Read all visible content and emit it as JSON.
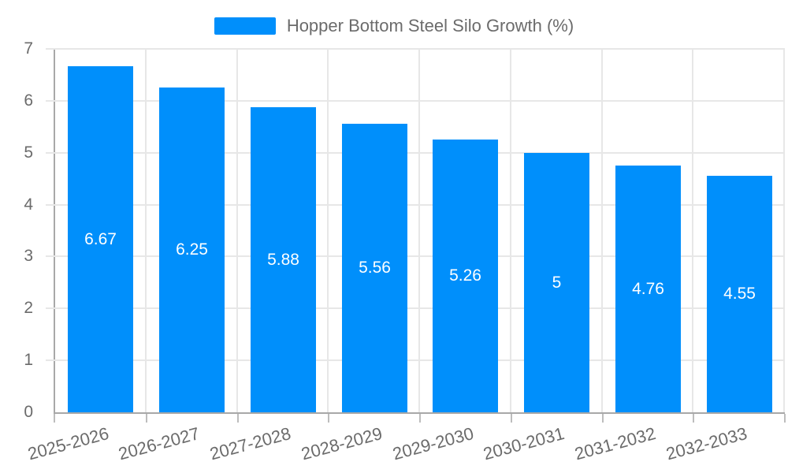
{
  "legend": {
    "label": "Hopper Bottom Steel Silo Growth (%)"
  },
  "chart_data": {
    "type": "bar",
    "title": "Hopper Bottom Steel Silo Growth (%)",
    "categories": [
      "2025-2026",
      "2026-2027",
      "2027-2028",
      "2028-2029",
      "2029-2030",
      "2030-2031",
      "2031-2032",
      "2032-2033"
    ],
    "values": [
      6.67,
      6.25,
      5.88,
      5.56,
      5.26,
      5,
      4.76,
      4.55
    ],
    "data_labels": [
      "6.67",
      "6.25",
      "5.88",
      "5.56",
      "5.26",
      "5",
      "4.76",
      "4.55"
    ],
    "xlabel": "",
    "ylabel": "",
    "ylim": [
      0,
      7
    ],
    "yticks": [
      0,
      1,
      2,
      3,
      4,
      5,
      6,
      7
    ],
    "grid": true,
    "legend_position": "top",
    "x_label_rotation_deg": -15
  },
  "colors": {
    "bar": "#008FFB",
    "grid": "#e7e7e7",
    "axis": "#a8a8a8",
    "tick": "#bdbdbd",
    "text": "#6b6b6b",
    "data_label_text": "#ffffff"
  }
}
